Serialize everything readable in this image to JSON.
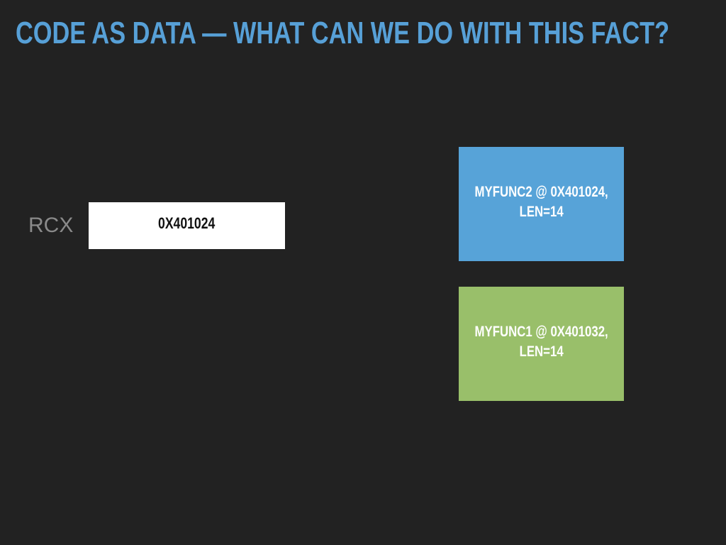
{
  "slide": {
    "title": "CODE AS DATA — WHAT CAN WE DO WITH THIS FACT?"
  },
  "register": {
    "name": "RCX",
    "value": "0X401024"
  },
  "functions": [
    {
      "line1": "MYFUNC2 @ 0X401024,",
      "line2": "LEN=14",
      "color": "#57a3d8"
    },
    {
      "line1": "MYFUNC1 @ 0X401032,",
      "line2": "LEN=14",
      "color": "#99bf6a"
    }
  ]
}
